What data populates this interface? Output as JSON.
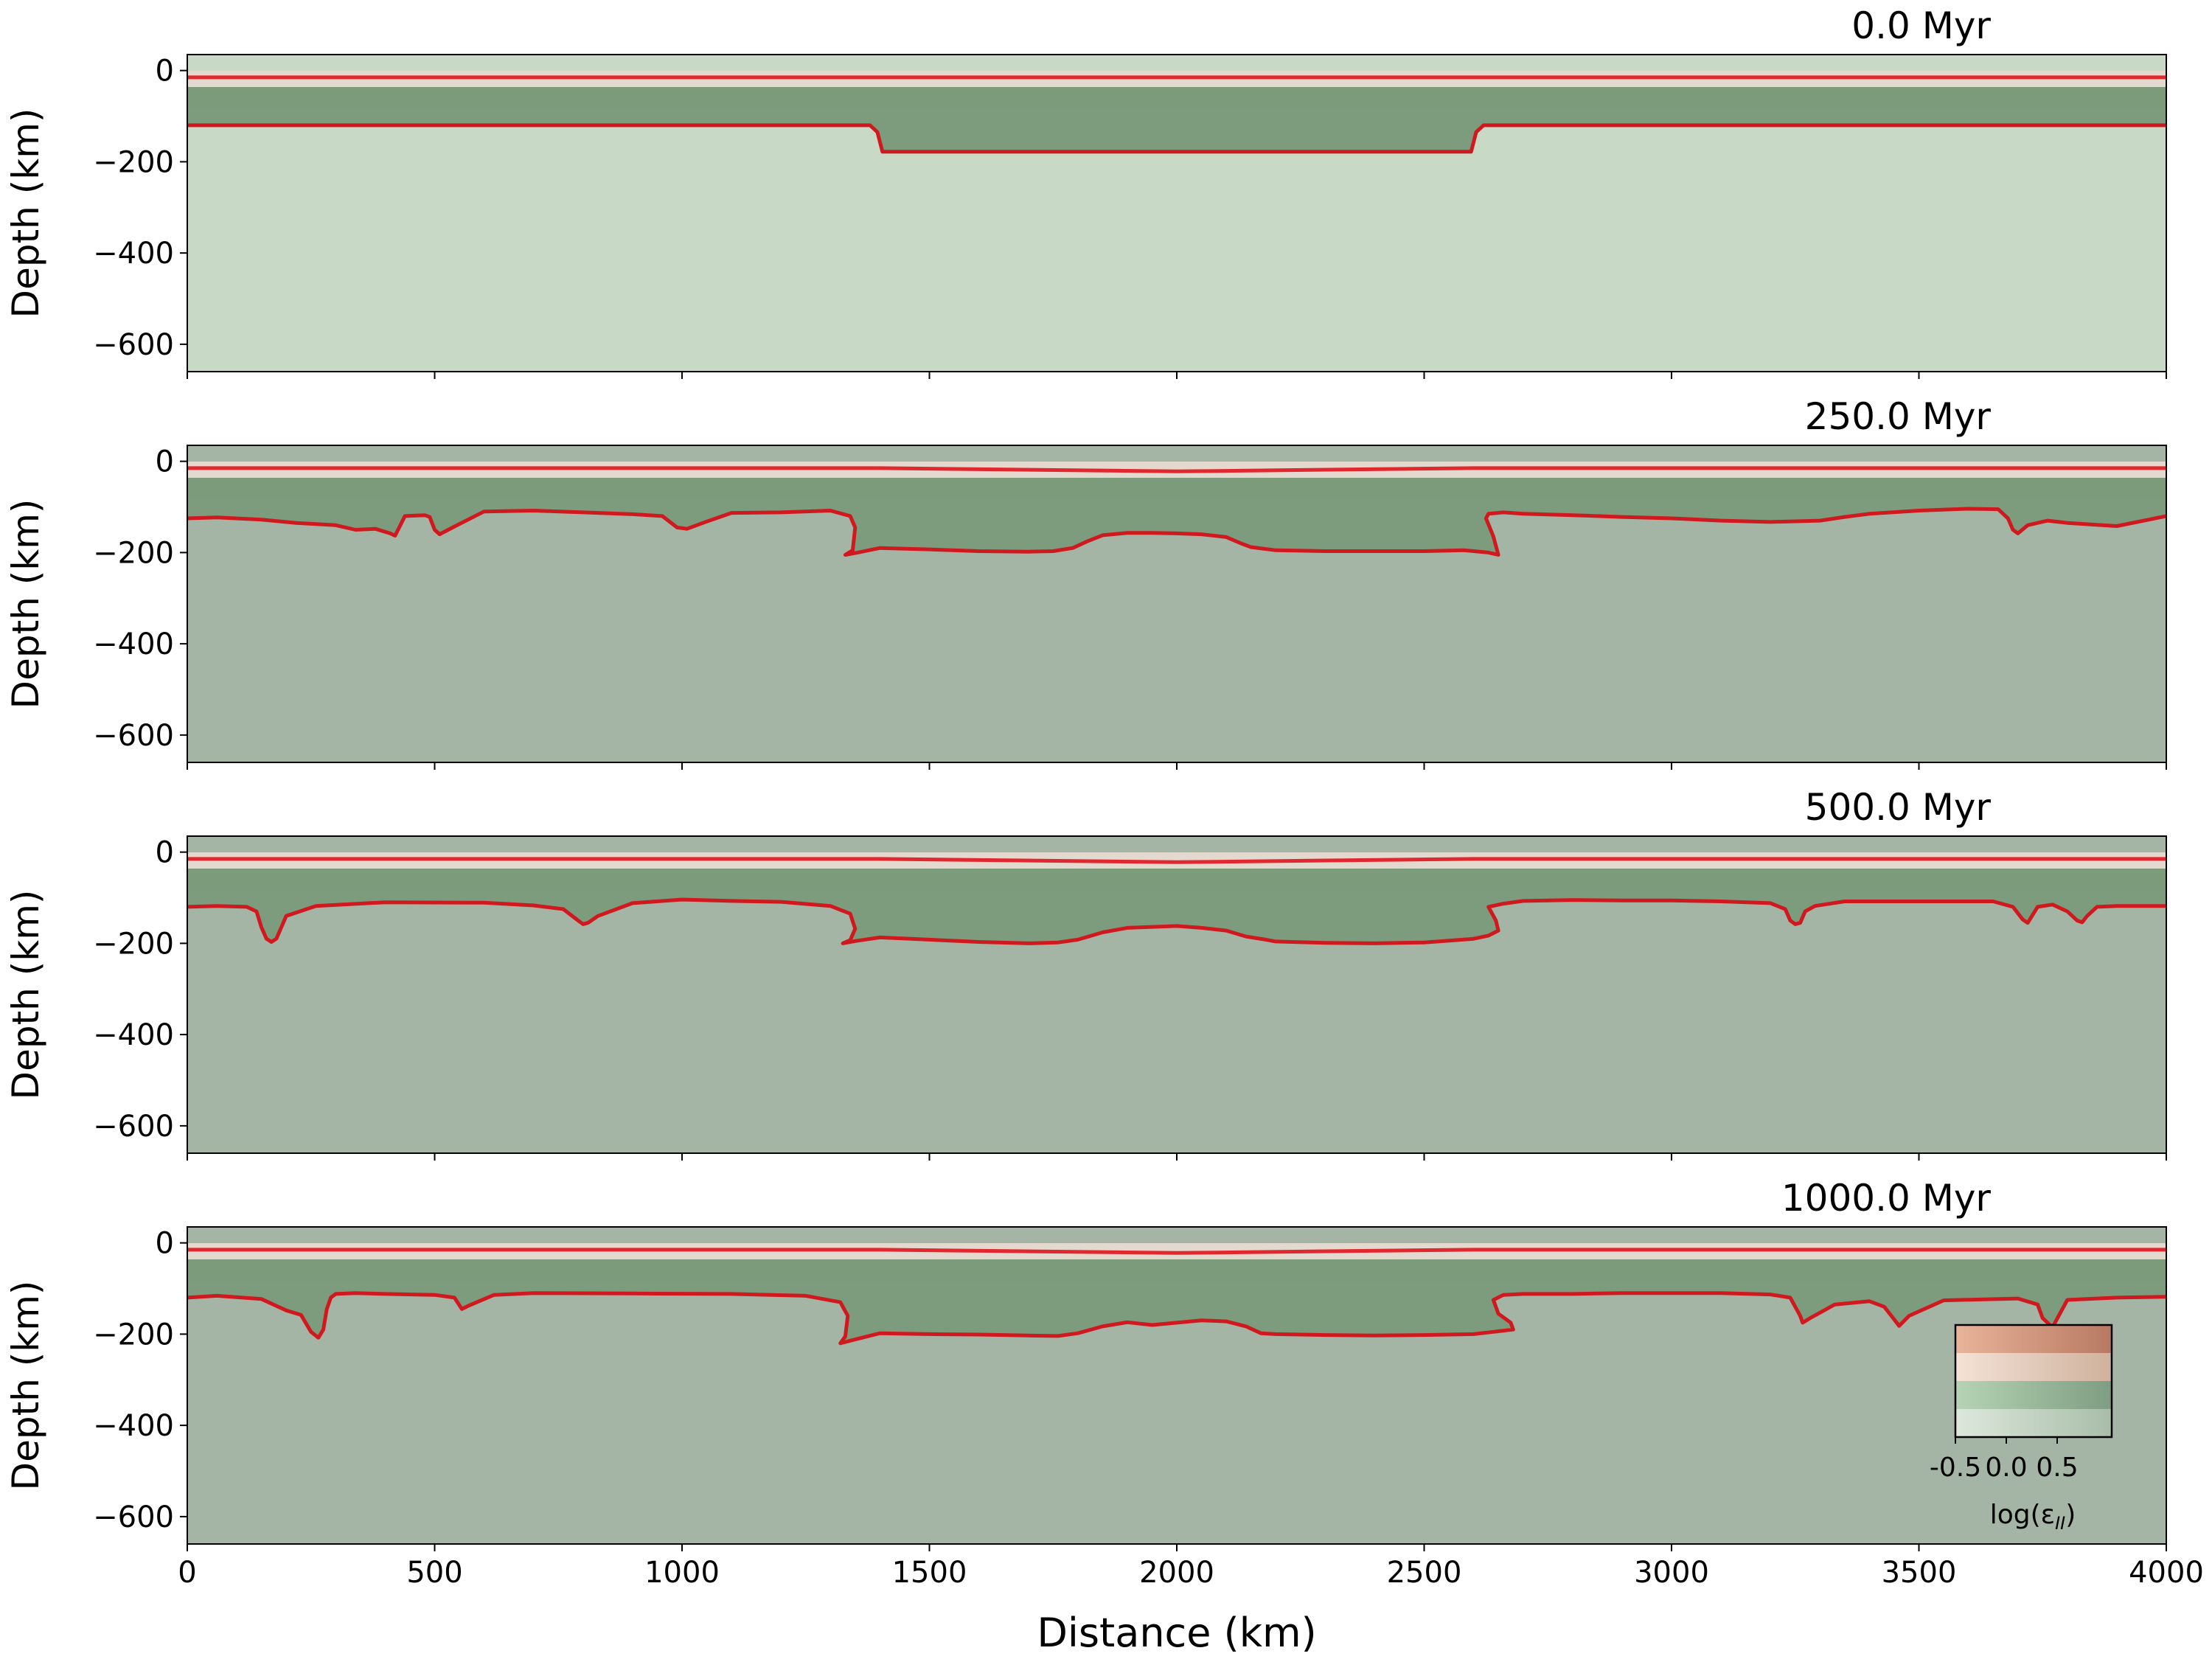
{
  "figure": {
    "xlabel": "Distance (km)",
    "colorbar": {
      "label": "log(ε",
      "label_sub": "II",
      "label_close": ")",
      "ticks": [
        "-0.5",
        "0.0",
        "0.5"
      ],
      "band_colors": [
        [
          "#e8b49a",
          "#b87962"
        ],
        [
          "#f4e2d6",
          "#cfb29d"
        ],
        [
          "#b6d4b5",
          "#7e9d82"
        ],
        [
          "#dde8dc",
          "#a9bda9"
        ]
      ]
    },
    "colors": {
      "lab_line": "#d0191f",
      "top_line": "#e0282e",
      "asthenosphere": "#a5b5a5",
      "asthenosphere_initial": "#c8d9c6",
      "craton": "#7d9c7d",
      "lith_band": "#7b9b7a"
    }
  },
  "chart_data": [
    {
      "type": "line",
      "title": "0.0 Myr",
      "ylabel": "Depth (km)",
      "xlim": [
        0,
        4000
      ],
      "ylim": [
        -660,
        35
      ],
      "xticks": [
        0,
        500,
        1000,
        1500,
        2000,
        2500,
        3000,
        3500,
        4000
      ],
      "yticks": [
        0,
        -200,
        -400,
        -600
      ],
      "ytick_labels": [
        "0",
        "−200",
        "−400",
        "−600"
      ],
      "show_xticklabels": false,
      "series": [
        {
          "role": "top",
          "x": [
            0,
            4000
          ],
          "y": [
            -15,
            -15
          ]
        },
        {
          "role": "lab",
          "x": [
            0,
            1380,
            1395,
            1405,
            2595,
            2605,
            2620,
            4000
          ],
          "y": [
            -120,
            -120,
            -135,
            -178,
            -178,
            -135,
            -120,
            -120
          ]
        }
      ]
    },
    {
      "type": "line",
      "title": "250.0 Myr",
      "ylabel": "Depth (km)",
      "xlim": [
        0,
        4000
      ],
      "ylim": [
        -660,
        35
      ],
      "xticks": [
        0,
        500,
        1000,
        1500,
        2000,
        2500,
        3000,
        3500,
        4000
      ],
      "yticks": [
        0,
        -200,
        -400,
        -600
      ],
      "ytick_labels": [
        "0",
        "−200",
        "−400",
        "−600"
      ],
      "show_xticklabels": false,
      "series": [
        {
          "role": "top",
          "x": [
            0,
            1400,
            2000,
            2600,
            4000
          ],
          "y": [
            -15,
            -15,
            -22,
            -15,
            -15
          ]
        },
        {
          "role": "lab",
          "x": [
            0,
            60,
            150,
            220,
            300,
            340,
            380,
            410,
            420,
            440,
            480,
            490,
            500,
            510,
            540,
            600,
            700,
            800,
            900,
            960,
            990,
            1010,
            1050,
            1100,
            1200,
            1300,
            1340,
            1350,
            1345,
            1330,
            1355,
            1400,
            1500,
            1600,
            1700,
            1750,
            1790,
            1820,
            1850,
            1900,
            1950,
            2000,
            2050,
            2100,
            2130,
            2150,
            2200,
            2300,
            2400,
            2500,
            2580,
            2630,
            2650,
            2640,
            2625,
            2630,
            2660,
            2700,
            2800,
            2900,
            3000,
            3100,
            3200,
            3300,
            3350,
            3400,
            3500,
            3600,
            3660,
            3680,
            3690,
            3700,
            3720,
            3760,
            3800,
            3900,
            4000
          ],
          "y": [
            -125,
            -123,
            -128,
            -135,
            -140,
            -150,
            -148,
            -158,
            -163,
            -120,
            -118,
            -122,
            -150,
            -160,
            -143,
            -110,
            -108,
            -112,
            -116,
            -120,
            -145,
            -148,
            -132,
            -113,
            -112,
            -108,
            -120,
            -145,
            -195,
            -205,
            -200,
            -190,
            -193,
            -197,
            -198,
            -197,
            -190,
            -175,
            -162,
            -157,
            -157,
            -158,
            -160,
            -166,
            -180,
            -188,
            -195,
            -197,
            -197,
            -197,
            -195,
            -200,
            -205,
            -165,
            -125,
            -115,
            -112,
            -115,
            -118,
            -122,
            -125,
            -130,
            -133,
            -130,
            -122,
            -115,
            -108,
            -104,
            -105,
            -125,
            -150,
            -158,
            -140,
            -130,
            -135,
            -142,
            -120
          ]
        }
      ]
    },
    {
      "type": "line",
      "title": "500.0 Myr",
      "ylabel": "Depth (km)",
      "xlim": [
        0,
        4000
      ],
      "ylim": [
        -660,
        35
      ],
      "xticks": [
        0,
        500,
        1000,
        1500,
        2000,
        2500,
        3000,
        3500,
        4000
      ],
      "yticks": [
        0,
        -200,
        -400,
        -600
      ],
      "ytick_labels": [
        "0",
        "−200",
        "−400",
        "−600"
      ],
      "show_xticklabels": false,
      "series": [
        {
          "role": "top",
          "x": [
            0,
            1400,
            2000,
            2600,
            4000
          ],
          "y": [
            -15,
            -15,
            -22,
            -15,
            -15
          ]
        },
        {
          "role": "lab",
          "x": [
            0,
            60,
            120,
            140,
            150,
            160,
            170,
            180,
            200,
            260,
            400,
            600,
            700,
            760,
            790,
            800,
            810,
            830,
            900,
            1000,
            1100,
            1200,
            1300,
            1340,
            1350,
            1340,
            1325,
            1350,
            1400,
            1500,
            1600,
            1700,
            1760,
            1800,
            1850,
            1900,
            2000,
            2050,
            2100,
            2140,
            2180,
            2200,
            2300,
            2400,
            2500,
            2600,
            2630,
            2650,
            2645,
            2630,
            2660,
            2700,
            2800,
            2900,
            3000,
            3100,
            3200,
            3230,
            3240,
            3250,
            3260,
            3270,
            3290,
            3350,
            3500,
            3650,
            3690,
            3710,
            3720,
            3740,
            3770,
            3800,
            3820,
            3830,
            3840,
            3860,
            3900,
            4000
          ],
          "y": [
            -120,
            -118,
            -120,
            -130,
            -165,
            -190,
            -197,
            -190,
            -140,
            -118,
            -110,
            -111,
            -117,
            -125,
            -150,
            -158,
            -155,
            -140,
            -112,
            -104,
            -107,
            -109,
            -118,
            -135,
            -168,
            -193,
            -200,
            -195,
            -187,
            -192,
            -197,
            -200,
            -198,
            -192,
            -176,
            -166,
            -162,
            -166,
            -172,
            -185,
            -192,
            -196,
            -199,
            -200,
            -198,
            -190,
            -183,
            -172,
            -150,
            -120,
            -113,
            -107,
            -105,
            -106,
            -106,
            -108,
            -112,
            -125,
            -150,
            -158,
            -155,
            -130,
            -118,
            -108,
            -108,
            -108,
            -120,
            -148,
            -155,
            -120,
            -115,
            -130,
            -150,
            -154,
            -140,
            -120,
            -118,
            -118
          ]
        }
      ]
    },
    {
      "type": "line",
      "title": "1000.0 Myr",
      "ylabel": "Depth (km)",
      "xlabel": "Distance (km)",
      "xlim": [
        0,
        4000
      ],
      "ylim": [
        -660,
        35
      ],
      "xticks": [
        0,
        500,
        1000,
        1500,
        2000,
        2500,
        3000,
        3500,
        4000
      ],
      "xtick_labels": [
        "0",
        "500",
        "1000",
        "1500",
        "2000",
        "2500",
        "3000",
        "3500",
        "4000"
      ],
      "yticks": [
        0,
        -200,
        -400,
        -600
      ],
      "ytick_labels": [
        "0",
        "−200",
        "−400",
        "−600"
      ],
      "show_xticklabels": true,
      "series": [
        {
          "role": "top",
          "x": [
            0,
            1400,
            2000,
            2600,
            4000
          ],
          "y": [
            -15,
            -15,
            -22,
            -15,
            -15
          ]
        },
        {
          "role": "lab",
          "x": [
            0,
            60,
            150,
            200,
            230,
            250,
            265,
            275,
            282,
            290,
            300,
            340,
            400,
            500,
            540,
            555,
            570,
            620,
            700,
            900,
            1100,
            1250,
            1320,
            1335,
            1330,
            1320,
            1345,
            1400,
            1500,
            1600,
            1700,
            1760,
            1800,
            1850,
            1900,
            1950,
            2000,
            2050,
            2100,
            2140,
            2170,
            2200,
            2300,
            2400,
            2500,
            2600,
            2640,
            2680,
            2675,
            2650,
            2640,
            2660,
            2700,
            2800,
            2900,
            3000,
            3100,
            3200,
            3240,
            3260,
            3265,
            3280,
            3330,
            3400,
            3430,
            3450,
            3460,
            3480,
            3550,
            3700,
            3740,
            3750,
            3770,
            3800,
            3900,
            4000
          ],
          "y": [
            -120,
            -116,
            -123,
            -148,
            -158,
            -195,
            -208,
            -190,
            -145,
            -120,
            -112,
            -110,
            -112,
            -114,
            -120,
            -145,
            -137,
            -114,
            -110,
            -111,
            -112,
            -116,
            -130,
            -160,
            -205,
            -220,
            -213,
            -198,
            -200,
            -201,
            -203,
            -204,
            -198,
            -183,
            -174,
            -180,
            -175,
            -170,
            -172,
            -183,
            -198,
            -200,
            -202,
            -203,
            -202,
            -200,
            -195,
            -190,
            -175,
            -155,
            -125,
            -114,
            -112,
            -112,
            -110,
            -110,
            -110,
            -113,
            -120,
            -160,
            -175,
            -165,
            -135,
            -128,
            -140,
            -168,
            -182,
            -160,
            -126,
            -122,
            -135,
            -165,
            -185,
            -125,
            -120,
            -118
          ]
        }
      ]
    }
  ]
}
